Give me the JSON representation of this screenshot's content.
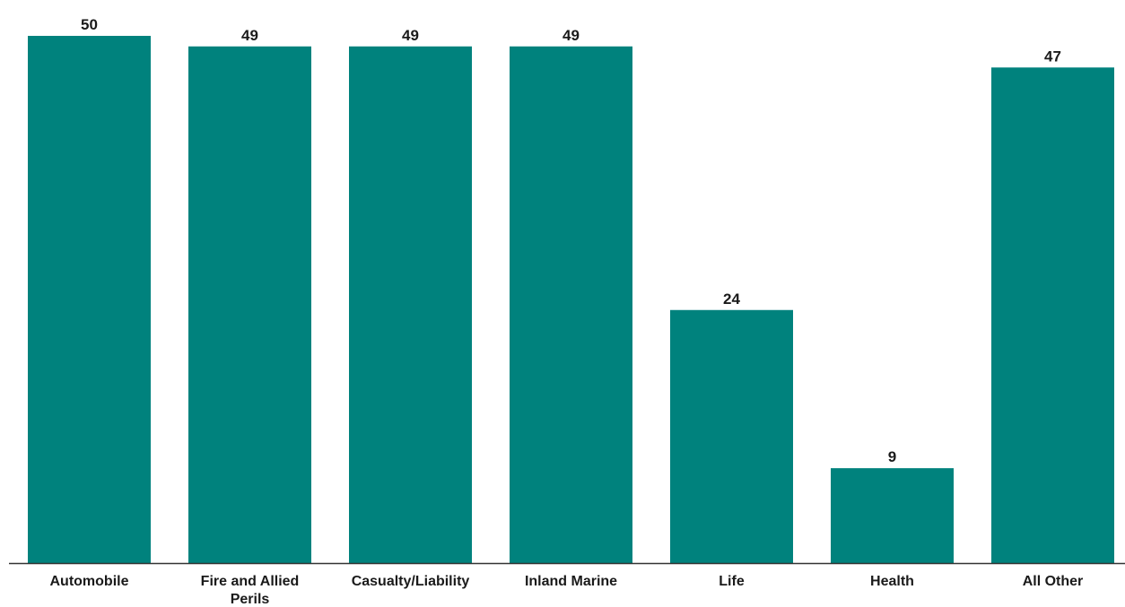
{
  "colors": {
    "bar": "#00827D",
    "axis": "#333333",
    "text": "#1a1a1a"
  },
  "chart_data": {
    "type": "bar",
    "title": "",
    "xlabel": "",
    "ylabel": "",
    "categories": [
      "Automobile",
      "Fire and Allied Perils",
      "Casualty/Liability",
      "Inland Marine",
      "Life",
      "Health",
      "All Other"
    ],
    "category_label_lines": [
      [
        "Automobile"
      ],
      [
        "Fire and Allied",
        "Perils"
      ],
      [
        "Casualty/Liability"
      ],
      [
        "Inland Marine"
      ],
      [
        "Life"
      ],
      [
        "Health"
      ],
      [
        "All Other"
      ]
    ],
    "values": [
      50,
      49,
      49,
      49,
      24,
      9,
      47
    ],
    "value_labels": [
      "50",
      "49",
      "49",
      "49",
      "24",
      "9",
      "47"
    ],
    "ylim": [
      0,
      50
    ],
    "grid": false,
    "legend": "none"
  }
}
